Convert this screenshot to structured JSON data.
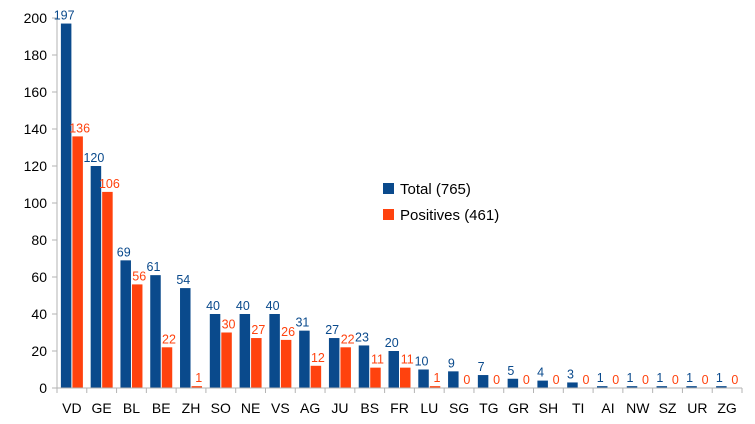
{
  "chart_data": {
    "type": "bar",
    "categories": [
      "VD",
      "GE",
      "BL",
      "BE",
      "ZH",
      "SO",
      "NE",
      "VS",
      "AG",
      "JU",
      "BS",
      "FR",
      "LU",
      "SG",
      "TG",
      "GR",
      "SH",
      "TI",
      "AI",
      "NW",
      "SZ",
      "UR",
      "ZG"
    ],
    "series": [
      {
        "name": "Total (765)",
        "values": [
          197,
          120,
          69,
          61,
          54,
          40,
          40,
          40,
          31,
          27,
          23,
          20,
          10,
          9,
          7,
          5,
          4,
          3,
          1,
          1,
          1,
          1,
          1
        ]
      },
      {
        "name": "Positives (461)",
        "values": [
          136,
          106,
          56,
          22,
          1,
          30,
          27,
          26,
          12,
          22,
          11,
          11,
          1,
          0,
          0,
          0,
          0,
          0,
          0,
          0,
          0,
          0,
          0
        ]
      }
    ],
    "colors": [
      "#0a4a8c",
      "#ff420e"
    ],
    "ylim": [
      0,
      200
    ],
    "yticks": [
      0,
      20,
      40,
      60,
      80,
      100,
      120,
      140,
      160,
      180,
      200
    ],
    "title": "",
    "xlabel": "",
    "ylabel": "",
    "grid": false,
    "legend": "center-right",
    "data_labels": true
  }
}
